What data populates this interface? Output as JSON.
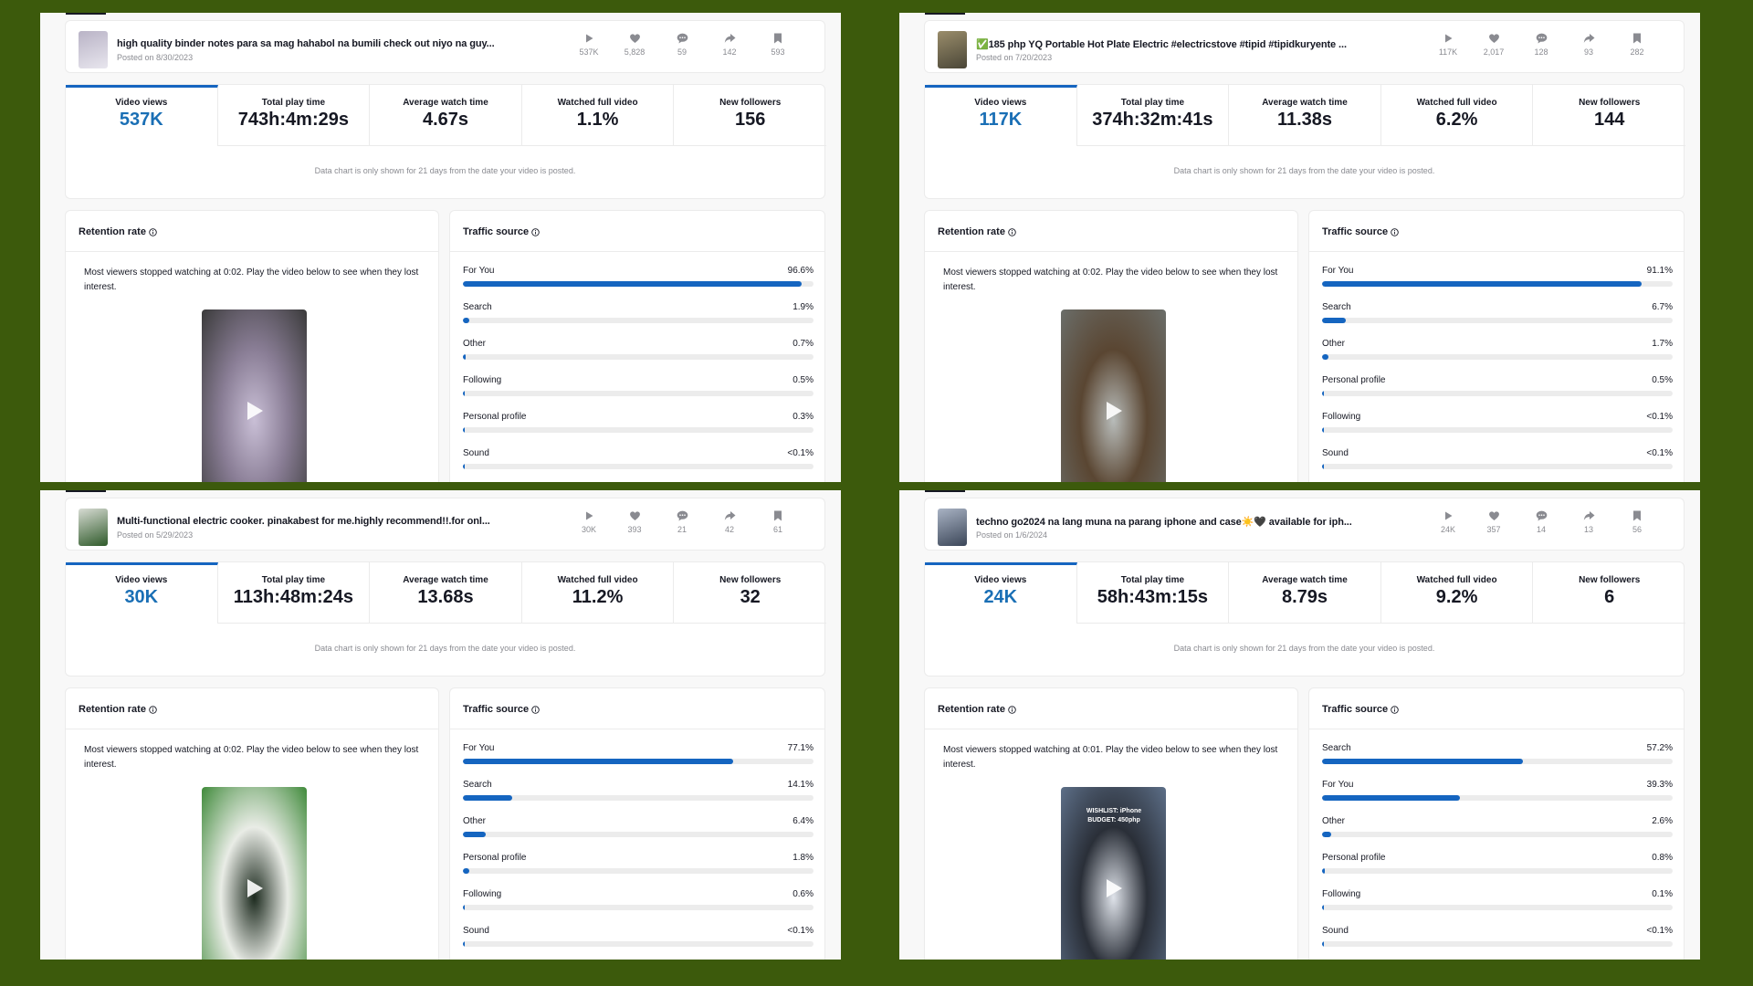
{
  "colors": {
    "background": "#3c5a0c",
    "accent": "#1565c0",
    "muted": "#8a8b91"
  },
  "panels": [
    {
      "video": {
        "title": "high quality binder notes para sa mag hahabol na bumili check out niyo na guy...",
        "posted": "Posted on 8/30/2023",
        "thumb_colors": [
          "#e8e6ee",
          "#b9b3c6"
        ]
      },
      "stats": [
        "537K",
        "5,828",
        "59",
        "142",
        "593"
      ],
      "metrics": [
        {
          "label": "Video views",
          "value": "537K"
        },
        {
          "label": "Total play time",
          "value": "743h:4m:29s"
        },
        {
          "label": "Average watch time",
          "value": "4.67s"
        },
        {
          "label": "Watched full video",
          "value": "1.1%"
        },
        {
          "label": "New followers",
          "value": "156"
        }
      ],
      "note": "Data chart is only shown for 21 days from the date your video is posted.",
      "retention": {
        "title": "Retention rate",
        "text": "Most viewers stopped watching at 0:02. Play the video below to see when they lost interest.",
        "video_colors": [
          "#3a3a3a",
          "#c9bfd6",
          "#8a7e96"
        ]
      },
      "traffic": {
        "title": "Traffic source",
        "rows": [
          {
            "label": "For You",
            "pct": "96.6%",
            "value": 96.6
          },
          {
            "label": "Search",
            "pct": "1.9%",
            "value": 1.9
          },
          {
            "label": "Other",
            "pct": "0.7%",
            "value": 0.7
          },
          {
            "label": "Following",
            "pct": "0.5%",
            "value": 0.5
          },
          {
            "label": "Personal profile",
            "pct": "0.3%",
            "value": 0.3
          },
          {
            "label": "Sound",
            "pct": "<0.1%",
            "value": 0.05
          }
        ]
      }
    },
    {
      "video": {
        "title": "✅185 php YQ Portable Hot Plate Electric #electricstove #tipid #tipidkuryente ...",
        "posted": "Posted on 7/20/2023",
        "thumb_colors": [
          "#4a4637",
          "#9a8d6b"
        ]
      },
      "stats": [
        "117K",
        "2,017",
        "128",
        "93",
        "282"
      ],
      "metrics": [
        {
          "label": "Video views",
          "value": "117K"
        },
        {
          "label": "Total play time",
          "value": "374h:32m:41s"
        },
        {
          "label": "Average watch time",
          "value": "11.38s"
        },
        {
          "label": "Watched full video",
          "value": "6.2%"
        },
        {
          "label": "New followers",
          "value": "144"
        }
      ],
      "note": "Data chart is only shown for 21 days from the date your video is posted.",
      "retention": {
        "title": "Retention rate",
        "text": "Most viewers stopped watching at 0:02. Play the video below to see when they lost interest.",
        "video_colors": [
          "#6b6e6a",
          "#b8bcba",
          "#5a4632"
        ]
      },
      "traffic": {
        "title": "Traffic source",
        "rows": [
          {
            "label": "For You",
            "pct": "91.1%",
            "value": 91.1
          },
          {
            "label": "Search",
            "pct": "6.7%",
            "value": 6.7
          },
          {
            "label": "Other",
            "pct": "1.7%",
            "value": 1.7
          },
          {
            "label": "Personal profile",
            "pct": "0.5%",
            "value": 0.5
          },
          {
            "label": "Following",
            "pct": "<0.1%",
            "value": 0.05
          },
          {
            "label": "Sound",
            "pct": "<0.1%",
            "value": 0.05
          }
        ]
      }
    },
    {
      "video": {
        "title": "Multi-functional electric cooker. pinakabest for me.highly recommend!!.for onl...",
        "posted": "Posted on 5/29/2023",
        "thumb_colors": [
          "#2f5a2a",
          "#d8dcd4"
        ]
      },
      "stats": [
        "30K",
        "393",
        "21",
        "42",
        "61"
      ],
      "metrics": [
        {
          "label": "Video views",
          "value": "30K"
        },
        {
          "label": "Total play time",
          "value": "113h:48m:24s"
        },
        {
          "label": "Average watch time",
          "value": "13.68s"
        },
        {
          "label": "Watched full video",
          "value": "11.2%"
        },
        {
          "label": "New followers",
          "value": "32"
        }
      ],
      "note": "Data chart is only shown for 21 days from the date your video is posted.",
      "retention": {
        "title": "Retention rate",
        "text": "Most viewers stopped watching at 0:02. Play the video below to see when they lost interest.",
        "video_colors": [
          "#3f8a3a",
          "#1c2a1e",
          "#e9ece6"
        ]
      },
      "traffic": {
        "title": "Traffic source",
        "rows": [
          {
            "label": "For You",
            "pct": "77.1%",
            "value": 77.1
          },
          {
            "label": "Search",
            "pct": "14.1%",
            "value": 14.1
          },
          {
            "label": "Other",
            "pct": "6.4%",
            "value": 6.4
          },
          {
            "label": "Personal profile",
            "pct": "1.8%",
            "value": 1.8
          },
          {
            "label": "Following",
            "pct": "0.6%",
            "value": 0.6
          },
          {
            "label": "Sound",
            "pct": "<0.1%",
            "value": 0.05
          }
        ]
      }
    },
    {
      "video": {
        "title": "techno go2024 na lang muna na parang iphone and case☀️🖤 available for iph...",
        "posted": "Posted on 1/6/2024",
        "thumb_colors": [
          "#3b4658",
          "#a9b3c4"
        ]
      },
      "stats": [
        "24K",
        "357",
        "14",
        "13",
        "56"
      ],
      "metrics": [
        {
          "label": "Video views",
          "value": "24K"
        },
        {
          "label": "Total play time",
          "value": "58h:43m:15s"
        },
        {
          "label": "Average watch time",
          "value": "8.79s"
        },
        {
          "label": "Watched full video",
          "value": "9.2%"
        },
        {
          "label": "New followers",
          "value": "6"
        }
      ],
      "note": "Data chart is only shown for 21 days from the date your video is posted.",
      "retention": {
        "title": "Retention rate",
        "text": "Most viewers stopped watching at 0:01. Play the video below to see when they lost interest.",
        "video_colors": [
          "#5d6f88",
          "#dfe3ea",
          "#2a2f38"
        ],
        "overlay": "WISHLIST: iPhone BUDGET: 450php"
      },
      "traffic": {
        "title": "Traffic source",
        "rows": [
          {
            "label": "Search",
            "pct": "57.2%",
            "value": 57.2
          },
          {
            "label": "For You",
            "pct": "39.3%",
            "value": 39.3
          },
          {
            "label": "Other",
            "pct": "2.6%",
            "value": 2.6
          },
          {
            "label": "Personal profile",
            "pct": "0.8%",
            "value": 0.8
          },
          {
            "label": "Following",
            "pct": "0.1%",
            "value": 0.1
          },
          {
            "label": "Sound",
            "pct": "<0.1%",
            "value": 0.05
          }
        ]
      }
    }
  ]
}
